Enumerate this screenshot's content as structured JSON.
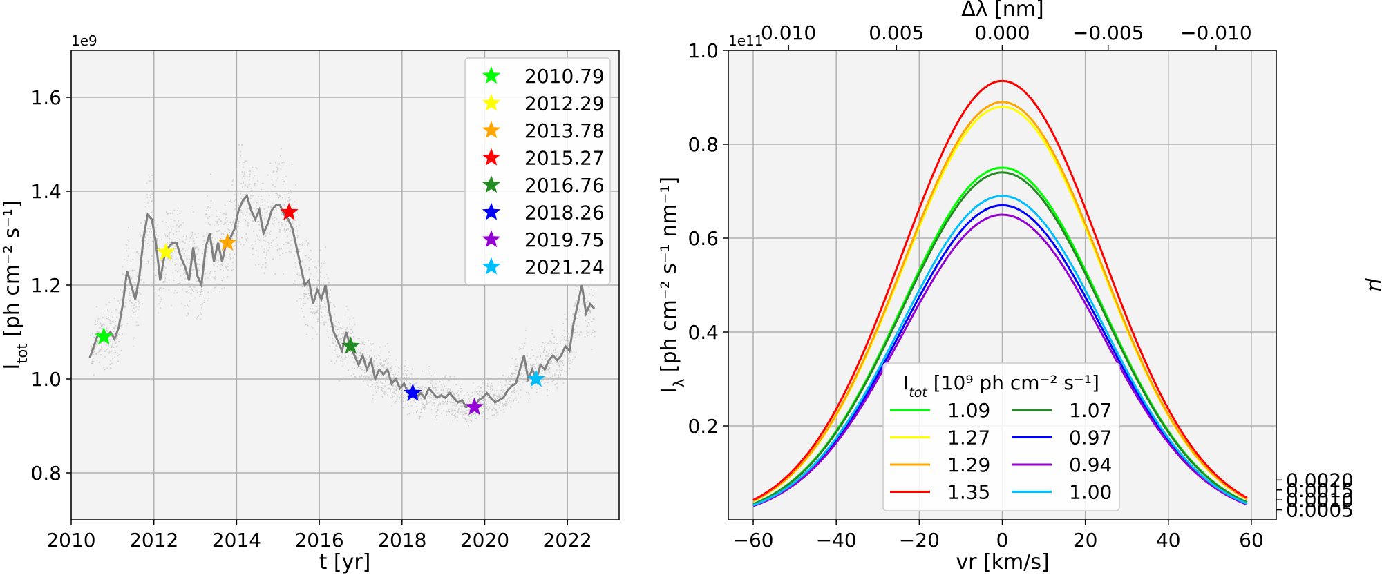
{
  "chart_data": [
    {
      "type": "line",
      "title": "",
      "xlabel": "t [yr]",
      "ylabel_main": "I",
      "ylabel_sub": "tot",
      "ylabel_unit": " [ph cm⁻² s⁻¹]",
      "sci_exponent": "1e9",
      "xlim": [
        2010.0,
        2023.25
      ],
      "ylim": [
        0.7,
        1.7
      ],
      "xticks": [
        2010,
        2012,
        2014,
        2016,
        2018,
        2020,
        2022
      ],
      "yticks": [
        0.8,
        1.0,
        1.2,
        1.4,
        1.6
      ],
      "grid": true,
      "legend_position": "top-right",
      "colors": {
        "line": "#808080",
        "scatter": "#cccccc"
      },
      "series_line": {
        "name": "smoothed",
        "x": [
          2010.45,
          2010.55,
          2010.65,
          2010.75,
          2010.85,
          2010.95,
          2011.05,
          2011.15,
          2011.25,
          2011.35,
          2011.45,
          2011.55,
          2011.65,
          2011.75,
          2011.85,
          2011.95,
          2012.05,
          2012.15,
          2012.25,
          2012.35,
          2012.45,
          2012.55,
          2012.65,
          2012.75,
          2012.85,
          2012.95,
          2013.05,
          2013.15,
          2013.25,
          2013.35,
          2013.45,
          2013.55,
          2013.65,
          2013.75,
          2013.85,
          2013.95,
          2014.05,
          2014.15,
          2014.25,
          2014.35,
          2014.45,
          2014.55,
          2014.65,
          2014.75,
          2014.85,
          2014.95,
          2015.05,
          2015.15,
          2015.25,
          2015.35,
          2015.45,
          2015.55,
          2015.65,
          2015.75,
          2015.85,
          2015.95,
          2016.05,
          2016.15,
          2016.25,
          2016.35,
          2016.45,
          2016.55,
          2016.65,
          2016.75,
          2016.85,
          2016.95,
          2017.05,
          2017.15,
          2017.25,
          2017.35,
          2017.45,
          2017.55,
          2017.65,
          2017.75,
          2017.85,
          2017.95,
          2018.05,
          2018.15,
          2018.25,
          2018.35,
          2018.45,
          2018.55,
          2018.65,
          2018.75,
          2018.85,
          2018.95,
          2019.05,
          2019.15,
          2019.25,
          2019.35,
          2019.45,
          2019.55,
          2019.65,
          2019.75,
          2019.85,
          2019.95,
          2020.05,
          2020.15,
          2020.25,
          2020.35,
          2020.45,
          2020.55,
          2020.65,
          2020.75,
          2020.85,
          2020.95,
          2021.05,
          2021.15,
          2021.25,
          2021.35,
          2021.45,
          2021.55,
          2021.65,
          2021.75,
          2021.85,
          2021.95,
          2022.05,
          2022.15,
          2022.25,
          2022.35,
          2022.45,
          2022.55,
          2022.65
        ],
        "y": [
          1.045,
          1.07,
          1.095,
          1.085,
          1.09,
          1.1,
          1.085,
          1.11,
          1.16,
          1.23,
          1.2,
          1.17,
          1.22,
          1.3,
          1.35,
          1.34,
          1.29,
          1.21,
          1.26,
          1.28,
          1.29,
          1.29,
          1.26,
          1.24,
          1.21,
          1.28,
          1.22,
          1.2,
          1.28,
          1.31,
          1.25,
          1.29,
          1.25,
          1.29,
          1.3,
          1.32,
          1.36,
          1.38,
          1.39,
          1.36,
          1.34,
          1.36,
          1.31,
          1.33,
          1.36,
          1.37,
          1.37,
          1.35,
          1.34,
          1.32,
          1.28,
          1.24,
          1.2,
          1.21,
          1.16,
          1.19,
          1.17,
          1.2,
          1.14,
          1.1,
          1.08,
          1.06,
          1.1,
          1.07,
          1.05,
          1.03,
          1.05,
          1.02,
          1.04,
          1.0,
          1.02,
          1.01,
          1.02,
          0.99,
          1.0,
          0.98,
          0.99,
          0.97,
          0.97,
          0.96,
          0.97,
          0.96,
          0.98,
          0.97,
          0.96,
          0.965,
          0.96,
          0.97,
          0.96,
          0.95,
          0.955,
          0.94,
          0.945,
          0.94,
          0.955,
          0.96,
          0.97,
          0.96,
          0.95,
          0.955,
          0.96,
          0.975,
          0.985,
          0.99,
          1.02,
          1.05,
          1.0,
          1.02,
          1.0,
          1.03,
          1.02,
          1.04,
          1.05,
          1.04,
          1.05,
          1.07,
          1.06,
          1.12,
          1.16,
          1.2,
          1.14,
          1.16,
          1.15
        ]
      },
      "stars": [
        {
          "label": "2010.79",
          "x": 2010.79,
          "y": 1.09,
          "color": "#00ff00"
        },
        {
          "label": "2012.29",
          "x": 2012.29,
          "y": 1.27,
          "color": "#ffff00"
        },
        {
          "label": "2013.78",
          "x": 2013.78,
          "y": 1.29,
          "color": "#ffa500"
        },
        {
          "label": "2015.27",
          "x": 2015.27,
          "y": 1.355,
          "color": "#ff0000"
        },
        {
          "label": "2016.76",
          "x": 2016.76,
          "y": 1.07,
          "color": "#228b22"
        },
        {
          "label": "2018.26",
          "x": 2018.26,
          "y": 0.97,
          "color": "#0000ff"
        },
        {
          "label": "2019.75",
          "x": 2019.75,
          "y": 0.94,
          "color": "#9400d3"
        },
        {
          "label": "2021.24",
          "x": 2021.24,
          "y": 1.0,
          "color": "#00bfff"
        }
      ]
    },
    {
      "type": "line",
      "title": "",
      "xlabel": "vr [km/s]",
      "ylabel_main": "I",
      "ylabel_sub": "λ",
      "ylabel_unit": " [ph cm⁻² s⁻¹ nm⁻¹]",
      "sci_exponent": "1e11",
      "top_xlabel": "Δλ [nm]",
      "right_ylabel": "μ",
      "xlim": [
        -66,
        66
      ],
      "ylim": [
        0.0,
        1.0
      ],
      "xticks": [
        -60,
        -40,
        -20,
        0,
        20,
        40,
        60
      ],
      "yticks": [
        0.2,
        0.4,
        0.6,
        0.8,
        1.0
      ],
      "top_ticks": [
        {
          "label": "0.010",
          "vr": -51.5
        },
        {
          "label": "0.005",
          "vr": -25.5
        },
        {
          "label": "0.000",
          "vr": 0
        },
        {
          "label": "−0.005",
          "vr": 25.5
        },
        {
          "label": "−0.010",
          "vr": 51.5
        }
      ],
      "right_ticks": [
        {
          "label": "0.0005",
          "value": 0.0005
        },
        {
          "label": "0.0010",
          "value": 0.001
        },
        {
          "label": "0.0015",
          "value": 0.0015
        },
        {
          "label": "0.0020",
          "value": 0.002
        }
      ],
      "right_scale": 42.4,
      "gauss_sigma": 24.1,
      "x_range": [
        -60,
        59
      ],
      "grid": true,
      "legend_title_main": "I",
      "legend_title_sub": "tot",
      "legend_title_unit": " [10⁹ ph cm⁻² s⁻¹]",
      "legend_position": "lower-center",
      "series": [
        {
          "name": "1.09",
          "peak": 0.75,
          "color": "#00ff00"
        },
        {
          "name": "1.27",
          "peak": 0.88,
          "color": "#ffff00"
        },
        {
          "name": "1.29",
          "peak": 0.89,
          "color": "#ffa500"
        },
        {
          "name": "1.35",
          "peak": 0.935,
          "color": "#ff0000"
        },
        {
          "name": "1.07",
          "peak": 0.74,
          "color": "#228b22"
        },
        {
          "name": "0.97",
          "peak": 0.67,
          "color": "#0000ff"
        },
        {
          "name": "0.94",
          "peak": 0.65,
          "color": "#9400d3"
        },
        {
          "name": "1.00",
          "peak": 0.69,
          "color": "#00bfff"
        }
      ]
    }
  ]
}
